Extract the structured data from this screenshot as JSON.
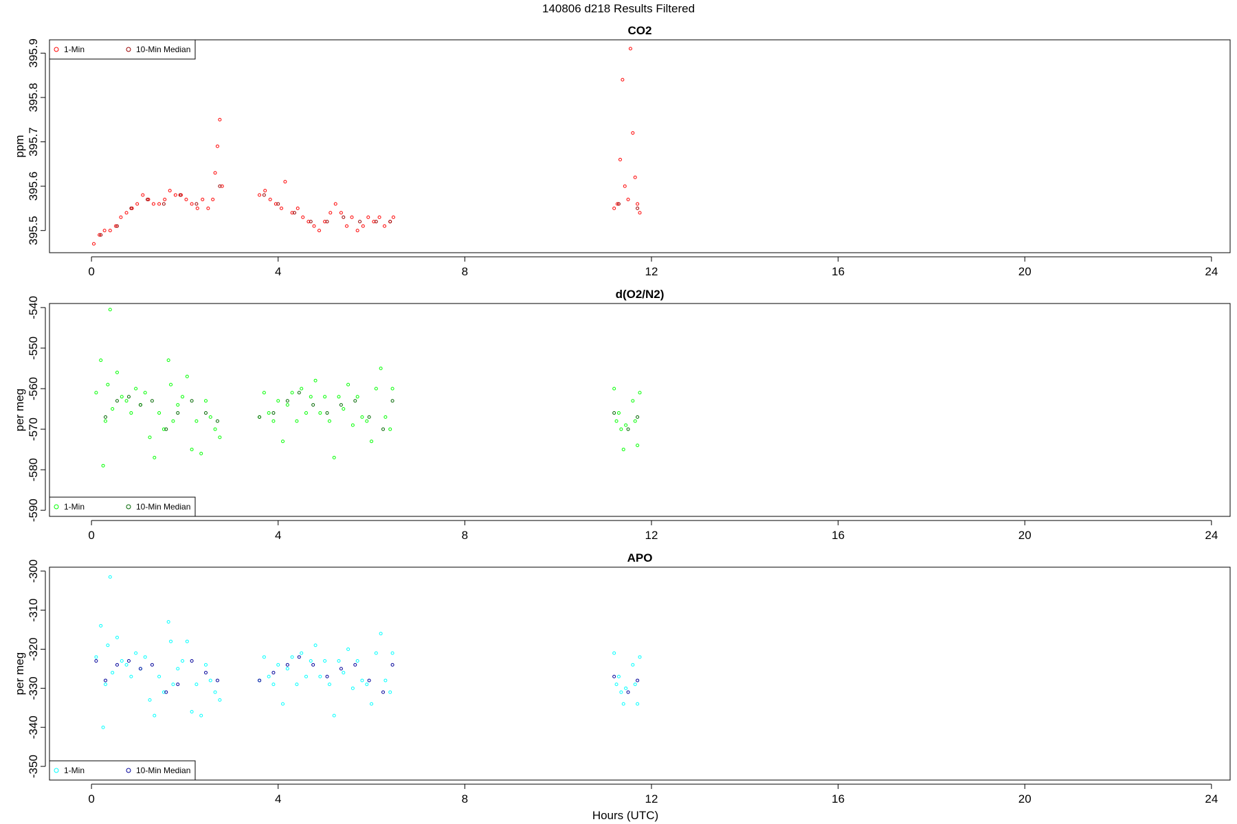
{
  "figure": {
    "title": "140806   d218   Results Filtered",
    "xlabel": "Hours (UTC)"
  },
  "chart_data": [
    {
      "type": "scatter",
      "title": "CO2",
      "xlabel": "Hours (UTC)",
      "ylabel": "ppm",
      "xlim": [
        -0.9,
        24.4
      ],
      "ylim": [
        395.45,
        395.93
      ],
      "xticks": [
        0,
        4,
        8,
        12,
        16,
        20,
        24
      ],
      "yticks": [
        395.5,
        395.6,
        395.7,
        395.8,
        395.9
      ],
      "ytick_labels": [
        "395.5",
        "395.6",
        "395.7",
        "395.8",
        "395.9"
      ],
      "legend_position": "top-left",
      "series": [
        {
          "name": "1-Min",
          "color": "#ff0000",
          "x": [
            0.05,
            0.17,
            0.28,
            0.4,
            0.52,
            0.63,
            0.75,
            0.87,
            0.98,
            1.1,
            1.22,
            1.33,
            1.45,
            1.57,
            1.68,
            1.8,
            1.92,
            2.03,
            2.15,
            2.27,
            2.38,
            2.5,
            2.6,
            2.65,
            2.7,
            2.75,
            2.8,
            3.6,
            3.72,
            3.83,
            3.95,
            4.07,
            4.15,
            4.3,
            4.42,
            4.53,
            4.65,
            4.77,
            4.88,
            5.0,
            5.12,
            5.23,
            5.35,
            5.47,
            5.58,
            5.7,
            5.82,
            5.93,
            6.05,
            6.17,
            6.28,
            6.4,
            6.47,
            11.2,
            11.27,
            11.33,
            11.38,
            11.43,
            11.5,
            11.55,
            11.6,
            11.65,
            11.7,
            11.75
          ],
          "y": [
            395.47,
            395.49,
            395.5,
            395.5,
            395.51,
            395.53,
            395.54,
            395.55,
            395.56,
            395.58,
            395.57,
            395.56,
            395.56,
            395.57,
            395.59,
            395.58,
            395.58,
            395.57,
            395.56,
            395.55,
            395.57,
            395.55,
            395.57,
            395.63,
            395.69,
            395.75,
            395.6,
            395.58,
            395.59,
            395.57,
            395.56,
            395.55,
            395.61,
            395.54,
            395.55,
            395.53,
            395.52,
            395.51,
            395.5,
            395.52,
            395.54,
            395.56,
            395.54,
            395.51,
            395.53,
            395.5,
            395.51,
            395.53,
            395.52,
            395.53,
            395.51,
            395.52,
            395.53,
            395.55,
            395.56,
            395.66,
            395.84,
            395.6,
            395.57,
            395.91,
            395.72,
            395.62,
            395.56,
            395.54
          ]
        },
        {
          "name": "10-Min Median",
          "color": "#990000",
          "x": [
            0.2,
            0.55,
            0.85,
            1.2,
            1.55,
            1.9,
            2.25,
            2.75,
            3.7,
            4.0,
            4.35,
            4.7,
            5.05,
            5.4,
            5.75,
            6.1,
            6.4,
            11.3,
            11.7
          ],
          "y": [
            395.49,
            395.51,
            395.55,
            395.57,
            395.56,
            395.58,
            395.56,
            395.6,
            395.58,
            395.56,
            395.54,
            395.52,
            395.52,
            395.53,
            395.52,
            395.52,
            395.52,
            395.56,
            395.55
          ]
        }
      ]
    },
    {
      "type": "scatter",
      "title": "d(O2/N2)",
      "xlabel": "Hours (UTC)",
      "ylabel": "per meg",
      "xlim": [
        -0.9,
        24.4
      ],
      "ylim": [
        -591.5,
        -539.0
      ],
      "xticks": [
        0,
        4,
        8,
        12,
        16,
        20,
        24
      ],
      "yticks": [
        -590,
        -580,
        -570,
        -560,
        -550,
        -540
      ],
      "ytick_labels": [
        "-590",
        "-580",
        "-570",
        "-560",
        "-550",
        "-540"
      ],
      "legend_position": "bottom-left",
      "series": [
        {
          "name": "1-Min",
          "color": "#00ff00",
          "x": [
            0.1,
            0.2,
            0.25,
            0.3,
            0.35,
            0.4,
            0.45,
            0.55,
            0.65,
            0.75,
            0.85,
            0.95,
            1.05,
            1.15,
            1.25,
            1.35,
            1.45,
            1.55,
            1.65,
            1.7,
            1.75,
            1.85,
            1.95,
            2.05,
            2.15,
            2.25,
            2.35,
            2.45,
            2.55,
            2.65,
            2.75,
            3.6,
            3.7,
            3.8,
            3.9,
            4.0,
            4.1,
            4.2,
            4.3,
            4.4,
            4.5,
            4.6,
            4.7,
            4.8,
            4.9,
            5.0,
            5.1,
            5.2,
            5.3,
            5.4,
            5.5,
            5.6,
            5.7,
            5.8,
            5.9,
            6.0,
            6.1,
            6.2,
            6.3,
            6.4,
            6.45,
            11.2,
            11.25,
            11.3,
            11.35,
            11.4,
            11.45,
            11.6,
            11.65,
            11.7,
            11.75
          ],
          "y": [
            -561,
            -553,
            -579,
            -568,
            -559,
            -540.5,
            -565,
            -556,
            -562,
            -563,
            -566,
            -560,
            -564,
            -561,
            -572,
            -577,
            -566,
            -570,
            -553,
            -559,
            -568,
            -564,
            -562,
            -557,
            -575,
            -568,
            -576,
            -563,
            -567,
            -570,
            -572,
            -567,
            -561,
            -566,
            -568,
            -563,
            -573,
            -564,
            -561,
            -568,
            -560,
            -566,
            -562,
            -558,
            -566,
            -562,
            -568,
            -577,
            -562,
            -565,
            -559,
            -569,
            -562,
            -567,
            -568,
            -573,
            -560,
            -555,
            -567,
            -570,
            -560,
            -560,
            -568,
            -566,
            -570,
            -575,
            -569,
            -563,
            -568,
            -574,
            -561
          ],
          "missing": false
        },
        {
          "name": "10-Min Median",
          "color": "#006600",
          "x": [
            0.3,
            0.55,
            0.8,
            1.05,
            1.3,
            1.6,
            1.85,
            2.15,
            2.45,
            2.7,
            3.6,
            3.9,
            4.2,
            4.45,
            4.75,
            5.05,
            5.35,
            5.65,
            5.95,
            6.25,
            6.45,
            11.2,
            11.5,
            11.7
          ],
          "y": [
            -567,
            -563,
            -562,
            -564,
            -563,
            -570,
            -566,
            -563,
            -566,
            -568,
            -567,
            -566,
            -563,
            -561,
            -564,
            -566,
            -564,
            -563,
            -567,
            -570,
            -563,
            -566,
            -570,
            -567
          ]
        }
      ]
    },
    {
      "type": "scatter",
      "title": "APO",
      "xlabel": "Hours (UTC)",
      "ylabel": "per meg",
      "xlim": [
        -0.9,
        24.4
      ],
      "ylim": [
        -353.5,
        -299.0
      ],
      "xticks": [
        0,
        4,
        8,
        12,
        16,
        20,
        24
      ],
      "yticks": [
        -350,
        -340,
        -330,
        -320,
        -310,
        -300
      ],
      "ytick_labels": [
        "-350",
        "-340",
        "-330",
        "-320",
        "-310",
        "-300"
      ],
      "legend_position": "bottom-left",
      "series": [
        {
          "name": "1-Min",
          "color": "#00ffff",
          "x": [
            0.1,
            0.2,
            0.25,
            0.3,
            0.35,
            0.4,
            0.45,
            0.55,
            0.65,
            0.75,
            0.85,
            0.95,
            1.05,
            1.15,
            1.25,
            1.35,
            1.45,
            1.55,
            1.65,
            1.7,
            1.75,
            1.85,
            1.95,
            2.05,
            2.15,
            2.25,
            2.35,
            2.45,
            2.55,
            2.65,
            2.75,
            3.6,
            3.7,
            3.8,
            3.9,
            4.0,
            4.1,
            4.2,
            4.3,
            4.4,
            4.5,
            4.6,
            4.7,
            4.8,
            4.9,
            5.0,
            5.1,
            5.2,
            5.3,
            5.4,
            5.5,
            5.6,
            5.7,
            5.8,
            5.9,
            6.0,
            6.1,
            6.2,
            6.3,
            6.4,
            6.45,
            11.2,
            11.25,
            11.3,
            11.35,
            11.4,
            11.45,
            11.6,
            11.65,
            11.7,
            11.75
          ],
          "y": [
            -322,
            -314,
            -340,
            -329,
            -319,
            -301.5,
            -326,
            -317,
            -323,
            -324,
            -327,
            -321,
            -325,
            -322,
            -333,
            -337,
            -327,
            -331,
            -313,
            -318,
            -329,
            -325,
            -323,
            -318,
            -336,
            -329,
            -337,
            -324,
            -328,
            -331,
            -333,
            -328,
            -322,
            -327,
            -329,
            -324,
            -334,
            -325,
            -322,
            -329,
            -321,
            -327,
            -323,
            -319,
            -327,
            -323,
            -329,
            -337,
            -323,
            -326,
            -320,
            -330,
            -323,
            -328,
            -329,
            -334,
            -321,
            -316,
            -328,
            -331,
            -321,
            -321,
            -329,
            -327,
            -331,
            -334,
            -330,
            -324,
            -329,
            -334,
            -322
          ]
        },
        {
          "name": "10-Min Median",
          "color": "#000099",
          "x": [
            0.1,
            0.3,
            0.55,
            0.8,
            1.05,
            1.3,
            1.6,
            1.85,
            2.15,
            2.45,
            2.7,
            3.6,
            3.9,
            4.2,
            4.45,
            4.75,
            5.05,
            5.35,
            5.65,
            5.95,
            6.25,
            6.45,
            11.2,
            11.5,
            11.7
          ],
          "y": [
            -323,
            -328,
            -324,
            -323,
            -325,
            -324,
            -331,
            -329,
            -323,
            -326,
            -328,
            -328,
            -326,
            -324,
            -322,
            -324,
            -327,
            -325,
            -324,
            -328,
            -331,
            -324,
            -327,
            -331,
            -328
          ]
        }
      ]
    }
  ]
}
